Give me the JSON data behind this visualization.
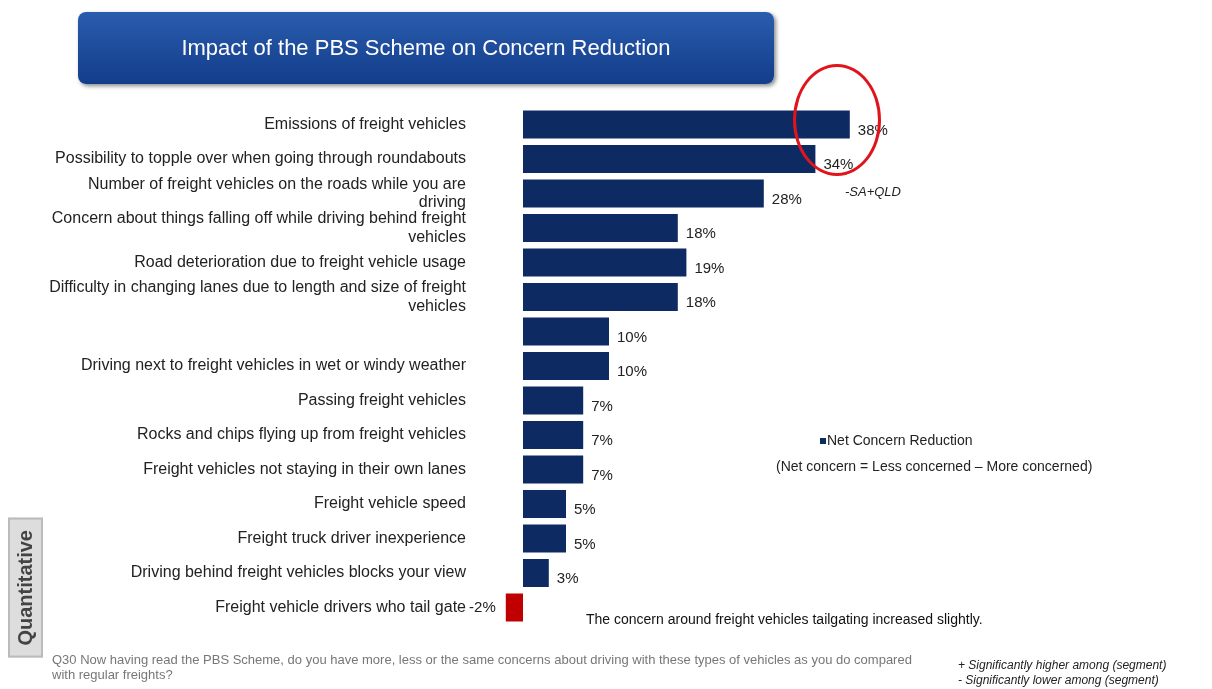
{
  "chart_data": {
    "type": "bar",
    "orientation": "horizontal",
    "title": "Impact of the PBS Scheme on Concern Reduction",
    "categories": [
      "Emissions of freight vehicles",
      "Possibility to topple over when going through roundabouts",
      "Number of freight vehicles on the roads while you are driving",
      "Concern about things falling off while driving behind freight vehicles",
      "Road deterioration due to freight vehicle usage",
      "Difficulty in changing lanes due to length and size of freight vehicles",
      null,
      "Driving next to freight vehicles in wet or windy weather",
      "Passing freight vehicles",
      "Rocks and chips flying up from freight vehicles",
      "Freight vehicles not staying in their own lanes",
      "Freight vehicle speed",
      "Freight truck driver inexperience",
      "Driving behind freight vehicles blocks your view",
      "Freight vehicle drivers who tail gate"
    ],
    "series": [
      {
        "name": "Net Concern Reduction",
        "color": "#0e2a63",
        "colors": [
          "#0e2a63",
          "#0e2a63",
          "#0e2a63",
          "#0e2a63",
          "#0e2a63",
          "#0e2a63",
          "#0e2a63",
          "#0e2a63",
          "#0e2a63",
          "#0e2a63",
          "#0e2a63",
          "#0e2a63",
          "#0e2a63",
          "#0e2a63",
          "#c00000"
        ],
        "values": [
          38,
          34,
          28,
          18,
          19,
          18,
          10,
          10,
          7,
          7,
          7,
          5,
          5,
          3,
          -2
        ],
        "value_labels": [
          "38%",
          "34%",
          "28%",
          "18%",
          "19%",
          "18%",
          "10%",
          "10%",
          "7%",
          "7%",
          "7%",
          "5%",
          "5%",
          "3%",
          "-2%"
        ]
      }
    ],
    "tick_labels": "y",
    "legend": "right",
    "annotations": [
      "-SA+QLD",
      "The concern around freight vehicles tailgating increased slightly.",
      "(Net concern = Less concerned – More concerned)",
      "Q30 Now having read the PBS Scheme, do you have more, less or the same concerns about driving with these types of vehicles as you do compared with regular freights?",
      "+ Significantly higher  among (segment)",
      "- Significantly lower among (segment)",
      "Quantitative"
    ]
  }
}
